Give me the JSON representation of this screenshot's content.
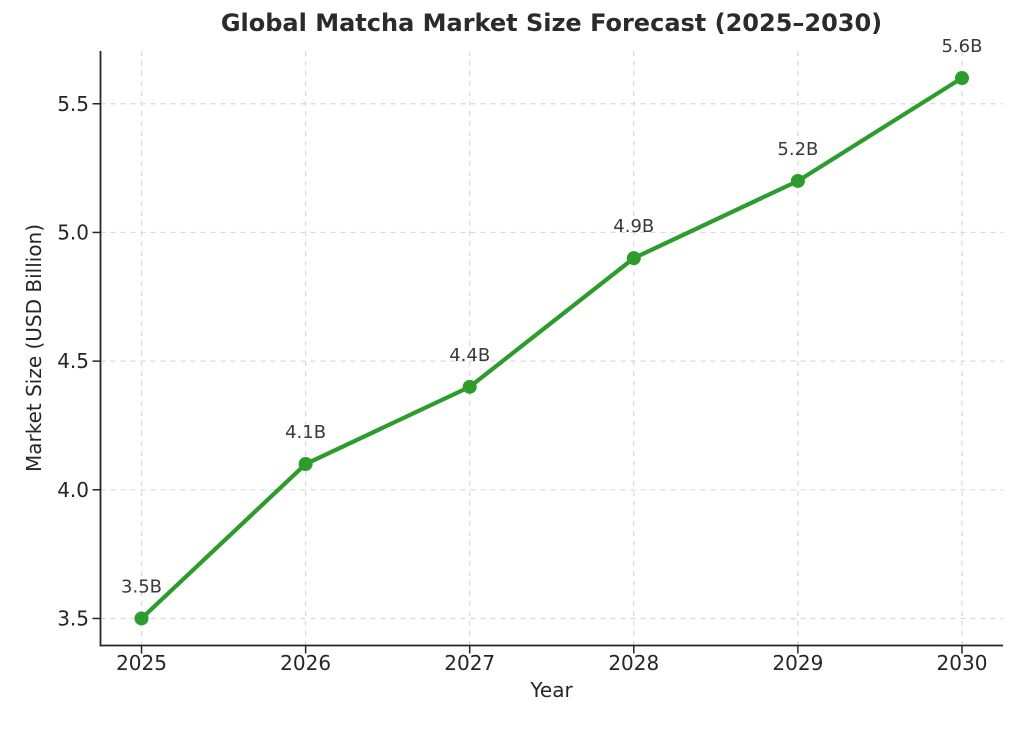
{
  "chart_data": {
    "type": "line",
    "title": "Global Matcha Market Size Forecast (2025–2030)",
    "xlabel": "Year",
    "ylabel": "Market Size (USD Billion)",
    "x": [
      2025,
      2026,
      2027,
      2028,
      2029,
      2030
    ],
    "x_tick_labels": [
      "2025",
      "2026",
      "2027",
      "2028",
      "2029",
      "2030"
    ],
    "values": [
      3.5,
      4.1,
      4.4,
      4.9,
      5.2,
      5.6
    ],
    "point_labels": [
      "3.5B",
      "4.1B",
      "4.4B",
      "4.9B",
      "5.2B",
      "5.6B"
    ],
    "series_name": "Market Size (USD Billion)",
    "y_ticks": [
      3.5,
      4.0,
      4.5,
      5.0,
      5.5
    ],
    "y_tick_labels": [
      "3.5",
      "4.0",
      "4.5",
      "5.0",
      "5.5"
    ],
    "xlim": [
      2024.75,
      2030.25
    ],
    "ylim": [
      3.395,
      5.705
    ],
    "grid": true,
    "grid_style": "dashed",
    "legend": "none",
    "colors": {
      "line": "#2c9c2c",
      "marker": "#2c9c2c",
      "grid": "#d9d9d9",
      "spine": "#262626",
      "text": "#262626",
      "annotation": "#3a3a3a",
      "background": "#ffffff"
    }
  }
}
